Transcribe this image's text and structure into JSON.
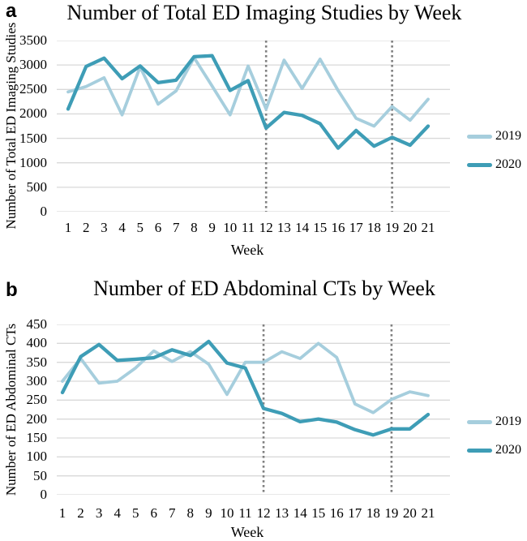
{
  "figure": {
    "background": "#ffffff",
    "grid_color": "#d9d9d9",
    "divider_color": "#808080",
    "text_color": "#000000",
    "series_colors": {
      "2019": "#a6cedd",
      "2020": "#3e9db6"
    }
  },
  "legend": {
    "items": [
      {
        "label": "2019",
        "color": "#a6cedd"
      },
      {
        "label": "2020",
        "color": "#3e9db6"
      }
    ]
  },
  "chart_data": [
    {
      "id": "a",
      "panel_letter": "a",
      "type": "line",
      "title": "Number of Total ED Imaging Studies by Week",
      "xlabel": "Week",
      "ylabel": "Number of Total ED Imaging Studies",
      "x": [
        1,
        2,
        3,
        4,
        5,
        6,
        7,
        8,
        9,
        10,
        11,
        12,
        13,
        14,
        15,
        16,
        17,
        18,
        19,
        20,
        21
      ],
      "series": [
        {
          "name": "2019",
          "color": "#a6cedd",
          "values": [
            2450,
            2560,
            2740,
            1980,
            2960,
            2200,
            2470,
            3150,
            2570,
            1980,
            2980,
            2100,
            3100,
            2520,
            3120,
            2480,
            1910,
            1750,
            2150,
            1870,
            2300
          ]
        },
        {
          "name": "2020",
          "color": "#3e9db6",
          "values": [
            2100,
            2970,
            3140,
            2720,
            2980,
            2640,
            2690,
            3170,
            3190,
            2480,
            2680,
            1710,
            2030,
            1970,
            1800,
            1300,
            1660,
            1340,
            1520,
            1360,
            1750
          ]
        }
      ],
      "ylim": [
        0,
        3500
      ],
      "yticks": [
        0,
        500,
        1000,
        1500,
        2000,
        2500,
        3000,
        3500
      ],
      "grid": true,
      "legend_position": "right",
      "vlines": [
        {
          "x": 12,
          "style": "dotted",
          "color": "#808080"
        },
        {
          "x": 19,
          "style": "dotted",
          "color": "#808080"
        }
      ]
    },
    {
      "id": "b",
      "panel_letter": "b",
      "type": "line",
      "title": "Number of ED Abdominal CTs by Week",
      "xlabel": "Week",
      "ylabel": "Number of ED Abdominal CTs",
      "x": [
        1,
        2,
        3,
        4,
        5,
        6,
        7,
        8,
        9,
        10,
        11,
        12,
        13,
        14,
        15,
        16,
        17,
        18,
        19,
        20,
        21
      ],
      "series": [
        {
          "name": "2019",
          "color": "#a6cedd",
          "values": [
            300,
            360,
            295,
            300,
            335,
            380,
            352,
            378,
            345,
            265,
            350,
            350,
            378,
            360,
            400,
            363,
            240,
            217,
            252,
            272,
            262
          ]
        },
        {
          "name": "2020",
          "color": "#3e9db6",
          "values": [
            270,
            365,
            397,
            355,
            358,
            362,
            383,
            368,
            405,
            348,
            335,
            228,
            215,
            193,
            200,
            192,
            172,
            158,
            174,
            174,
            212
          ]
        }
      ],
      "ylim": [
        0,
        450
      ],
      "yticks": [
        0,
        50,
        100,
        150,
        200,
        250,
        300,
        350,
        400,
        450
      ],
      "grid": true,
      "legend_position": "right",
      "vlines": [
        {
          "x": 12,
          "style": "dotted",
          "color": "#808080"
        },
        {
          "x": 19,
          "style": "dotted",
          "color": "#808080"
        }
      ]
    }
  ]
}
